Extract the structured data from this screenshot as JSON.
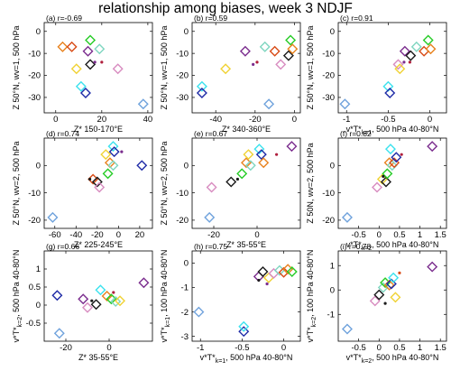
{
  "title": "relationship among biases, week 3 NDJF",
  "chart_data": [
    {
      "type": "scatter",
      "panel": "(a)",
      "r_label": "r=-0.69",
      "xlabel": "Z* 150-170°E",
      "ylabel": "Z 50°N, wv=1, 500 hPa",
      "xlim": [
        -5,
        42
      ],
      "ylim": [
        -37,
        4
      ],
      "xticks": [
        0,
        20,
        40
      ],
      "yticks": [
        0,
        -10,
        -20,
        -30
      ],
      "points": [
        {
          "x": 3,
          "y": -7,
          "color": "#e8821e",
          "marker": "diamond"
        },
        {
          "x": 7,
          "y": -7,
          "color": "#d84b16",
          "marker": "diamond"
        },
        {
          "x": 9,
          "y": -17,
          "color": "#f0d234",
          "marker": "diamond"
        },
        {
          "x": 11,
          "y": -25,
          "color": "#3ce2ee",
          "marker": "diamond"
        },
        {
          "x": 13,
          "y": -28,
          "color": "#1e2aa6",
          "marker": "diamond"
        },
        {
          "x": 15,
          "y": -4,
          "color": "#26cc26",
          "marker": "diamond"
        },
        {
          "x": 14,
          "y": -9,
          "color": "#7b2d8e",
          "marker": "diamond"
        },
        {
          "x": 15,
          "y": -15,
          "color": "#1a1a1a",
          "marker": "diamond"
        },
        {
          "x": 19,
          "y": -8,
          "color": "#7fd6c0",
          "marker": "diamond"
        },
        {
          "x": 27,
          "y": -17,
          "color": "#d88cc0",
          "marker": "diamond"
        },
        {
          "x": 38,
          "y": -33,
          "color": "#6fa2dc",
          "marker": "diamond"
        },
        {
          "x": 17,
          "y": -14,
          "color": "#7b2d8e",
          "marker": "dot"
        },
        {
          "x": 20,
          "y": -14,
          "color": "#b0203e",
          "marker": "dot"
        }
      ]
    },
    {
      "type": "scatter",
      "panel": "(b)",
      "r_label": "r=0.59",
      "xlabel": "Z* 340-360°E",
      "ylabel": "Z 50°N, wv=1, 500 hPa",
      "xlim": [
        -52,
        3
      ],
      "ylim": [
        -37,
        4
      ],
      "xticks": [
        -40,
        -20,
        0
      ],
      "yticks": [
        0,
        -10,
        -20,
        -30
      ],
      "points": [
        {
          "x": -47,
          "y": -25,
          "color": "#3ce2ee",
          "marker": "diamond"
        },
        {
          "x": -47,
          "y": -28,
          "color": "#1e2aa6",
          "marker": "diamond"
        },
        {
          "x": -35,
          "y": -17,
          "color": "#f0d234",
          "marker": "diamond"
        },
        {
          "x": -25,
          "y": -9,
          "color": "#7b2d8e",
          "marker": "diamond"
        },
        {
          "x": -15,
          "y": -7,
          "color": "#7fd6c0",
          "marker": "diamond"
        },
        {
          "x": -13,
          "y": -33,
          "color": "#6fa2dc",
          "marker": "diamond"
        },
        {
          "x": -10,
          "y": -9,
          "color": "#d84b16",
          "marker": "diamond"
        },
        {
          "x": -7,
          "y": -15,
          "color": "#d88cc0",
          "marker": "diamond"
        },
        {
          "x": -3,
          "y": -11,
          "color": "#1a1a1a",
          "marker": "diamond"
        },
        {
          "x": -2,
          "y": -4,
          "color": "#26cc26",
          "marker": "diamond"
        },
        {
          "x": -1,
          "y": -8,
          "color": "#e8821e",
          "marker": "diamond"
        },
        {
          "x": -21,
          "y": -15,
          "color": "#7b2d8e",
          "marker": "dot"
        },
        {
          "x": -19,
          "y": -14,
          "color": "#b0203e",
          "marker": "dot"
        }
      ]
    },
    {
      "type": "scatter",
      "panel": "(c)",
      "r_label": "r=0.91",
      "xlabel": "v*T*k=1, 500 hPa 40-80°N",
      "ylabel": "Z 50°N, wv=1, 500 hPa",
      "xlim": [
        -1.1,
        0.2
      ],
      "ylim": [
        -37,
        4
      ],
      "xticks": [
        -1,
        -0.5,
        0
      ],
      "yticks": [
        0,
        -10,
        -20,
        -30
      ],
      "points": [
        {
          "x": -1.02,
          "y": -33,
          "color": "#6fa2dc",
          "marker": "diamond"
        },
        {
          "x": -0.5,
          "y": -25,
          "color": "#3ce2ee",
          "marker": "diamond"
        },
        {
          "x": -0.48,
          "y": -28,
          "color": "#1e2aa6",
          "marker": "diamond"
        },
        {
          "x": -0.38,
          "y": -15,
          "color": "#d88cc0",
          "marker": "diamond"
        },
        {
          "x": -0.36,
          "y": -17,
          "color": "#f0d234",
          "marker": "diamond"
        },
        {
          "x": -0.3,
          "y": -9,
          "color": "#7b2d8e",
          "marker": "diamond"
        },
        {
          "x": -0.23,
          "y": -11,
          "color": "#1a1a1a",
          "marker": "diamond"
        },
        {
          "x": -0.16,
          "y": -7,
          "color": "#7fd6c0",
          "marker": "diamond"
        },
        {
          "x": -0.07,
          "y": -9,
          "color": "#d84b16",
          "marker": "diamond"
        },
        {
          "x": -0.02,
          "y": -4,
          "color": "#26cc26",
          "marker": "diamond"
        },
        {
          "x": 0.01,
          "y": -8,
          "color": "#e8821e",
          "marker": "diamond"
        },
        {
          "x": -0.31,
          "y": -14,
          "color": "#7b2d8e",
          "marker": "dot"
        },
        {
          "x": -0.24,
          "y": -14,
          "color": "#b0203e",
          "marker": "dot"
        }
      ]
    },
    {
      "type": "scatter",
      "panel": "(d)",
      "r_label": "r=0.74",
      "xlabel": "Z* 225-245°E",
      "ylabel": "Z 50°N, wv=2, 500 hPa",
      "xlim": [
        -70,
        32
      ],
      "ylim": [
        -23,
        10
      ],
      "xticks": [
        -60,
        -40,
        -20,
        0,
        20
      ],
      "yticks": [
        0,
        -10,
        -20
      ],
      "points": [
        {
          "x": -62,
          "y": -19,
          "color": "#6fa2dc",
          "marker": "diamond"
        },
        {
          "x": -24,
          "y": -5,
          "color": "#d84b16",
          "marker": "diamond"
        },
        {
          "x": -20,
          "y": -6,
          "color": "#1a1a1a",
          "marker": "diamond"
        },
        {
          "x": -18,
          "y": -8,
          "color": "#d88cc0",
          "marker": "diamond"
        },
        {
          "x": -12,
          "y": 4,
          "color": "#f0d234",
          "marker": "diamond"
        },
        {
          "x": -10,
          "y": -3,
          "color": "#26cc26",
          "marker": "diamond"
        },
        {
          "x": -8,
          "y": 1,
          "color": "#e8821e",
          "marker": "diamond"
        },
        {
          "x": -5,
          "y": 7,
          "color": "#3ce2ee",
          "marker": "diamond"
        },
        {
          "x": -4,
          "y": 5,
          "color": "#1e2aa6",
          "marker": "diamond"
        },
        {
          "x": -5,
          "y": 0,
          "color": "#7fd6c0",
          "marker": "diamond"
        },
        {
          "x": 22,
          "y": 0,
          "color": "#1e2aa6",
          "marker": "diamond"
        },
        {
          "x": 3,
          "y": 5,
          "color": "#7b2d8e",
          "marker": "dot"
        },
        {
          "x": -27,
          "y": -5,
          "color": "#1a1a1a",
          "marker": "dot"
        }
      ]
    },
    {
      "type": "scatter",
      "panel": "(e)",
      "r_label": "r=0.67",
      "xlabel": "Z* 35-55°E",
      "ylabel": "Z 50°N, wv=2, 500 hPa",
      "xlim": [
        -30,
        20
      ],
      "ylim": [
        -23,
        10
      ],
      "xticks": [
        -20,
        0
      ],
      "yticks": [
        0,
        -10,
        -20
      ],
      "points": [
        {
          "x": -22,
          "y": -19,
          "color": "#6fa2dc",
          "marker": "diamond"
        },
        {
          "x": -21,
          "y": -8,
          "color": "#d88cc0",
          "marker": "diamond"
        },
        {
          "x": -12,
          "y": -6,
          "color": "#1a1a1a",
          "marker": "diamond"
        },
        {
          "x": -7,
          "y": -3,
          "color": "#26cc26",
          "marker": "diamond"
        },
        {
          "x": -5,
          "y": 1,
          "color": "#e8821e",
          "marker": "diamond"
        },
        {
          "x": -4,
          "y": 4,
          "color": "#f0d234",
          "marker": "diamond"
        },
        {
          "x": -3,
          "y": 0,
          "color": "#7fd6c0",
          "marker": "diamond"
        },
        {
          "x": 1,
          "y": 6,
          "color": "#3ce2ee",
          "marker": "diamond"
        },
        {
          "x": 2,
          "y": 4,
          "color": "#1e2aa6",
          "marker": "diamond"
        },
        {
          "x": 3,
          "y": 1,
          "color": "#e8821e",
          "marker": "diamond"
        },
        {
          "x": 16,
          "y": 7,
          "color": "#7b2d8e",
          "marker": "diamond"
        },
        {
          "x": 9,
          "y": 4,
          "color": "#b0203e",
          "marker": "dot"
        },
        {
          "x": -9,
          "y": -5,
          "color": "#1a1a1a",
          "marker": "dot"
        }
      ]
    },
    {
      "type": "scatter",
      "panel": "(f)",
      "r_label": "r=0.82",
      "xlabel": "v*T*k=2, 500 hPa 40-80°N",
      "ylabel": "Z 50N, wv=2, 500 hPa",
      "xlim": [
        -1.0,
        1.65
      ],
      "ylim": [
        -23,
        10
      ],
      "xticks": [
        -0.5,
        0,
        0.5,
        1,
        1.5
      ],
      "yticks": [
        0,
        -10,
        -20
      ],
      "points": [
        {
          "x": -0.78,
          "y": -19,
          "color": "#6fa2dc",
          "marker": "diamond"
        },
        {
          "x": -0.05,
          "y": -8,
          "color": "#d88cc0",
          "marker": "diamond"
        },
        {
          "x": 0.08,
          "y": -5,
          "color": "#f0d234",
          "marker": "diamond"
        },
        {
          "x": 0.17,
          "y": -6,
          "color": "#1a1a1a",
          "marker": "diamond"
        },
        {
          "x": 0.2,
          "y": -3,
          "color": "#26cc26",
          "marker": "diamond"
        },
        {
          "x": 0.25,
          "y": 1,
          "color": "#e8821e",
          "marker": "diamond"
        },
        {
          "x": 0.32,
          "y": 0,
          "color": "#7fd6c0",
          "marker": "diamond"
        },
        {
          "x": 0.37,
          "y": 1,
          "color": "#d84b16",
          "marker": "diamond"
        },
        {
          "x": 0.42,
          "y": 3,
          "color": "#1e2aa6",
          "marker": "diamond"
        },
        {
          "x": 0.28,
          "y": 6,
          "color": "#3ce2ee",
          "marker": "diamond"
        },
        {
          "x": 1.3,
          "y": 7,
          "color": "#7b2d8e",
          "marker": "diamond"
        },
        {
          "x": 0.1,
          "y": -4,
          "color": "#1a1a1a",
          "marker": "dot"
        },
        {
          "x": 0.55,
          "y": 4,
          "color": "#b0203e",
          "marker": "dot"
        }
      ]
    },
    {
      "type": "scatter",
      "panel": "(g)",
      "r_label": "r=0.66",
      "xlabel": "Z* 35-55°E",
      "ylabel": "v*T*k=2, 500 hPa 40-80°N",
      "xlim": [
        -30,
        20
      ],
      "ylim": [
        -1.0,
        1.5
      ],
      "xticks": [
        -20,
        0
      ],
      "yticks": [
        1,
        0.5,
        0,
        -0.5
      ],
      "points": [
        {
          "x": -23,
          "y": -0.78,
          "color": "#6fa2dc",
          "marker": "diamond"
        },
        {
          "x": -24,
          "y": 0.27,
          "color": "#1e2aa6",
          "marker": "diamond"
        },
        {
          "x": -12,
          "y": 0.17,
          "color": "#7b2d8e",
          "marker": "diamond"
        },
        {
          "x": -10,
          "y": -0.07,
          "color": "#d88cc0",
          "marker": "diamond"
        },
        {
          "x": -6,
          "y": 0.02,
          "color": "#1a1a1a",
          "marker": "diamond"
        },
        {
          "x": -4,
          "y": 0.42,
          "color": "#3ce2ee",
          "marker": "diamond"
        },
        {
          "x": -1,
          "y": 0.25,
          "color": "#e8821e",
          "marker": "diamond"
        },
        {
          "x": 1,
          "y": 0.17,
          "color": "#26cc26",
          "marker": "diamond"
        },
        {
          "x": 3,
          "y": 0.1,
          "color": "#7fd6c0",
          "marker": "diamond"
        },
        {
          "x": 5,
          "y": 0.12,
          "color": "#f0d234",
          "marker": "diamond"
        },
        {
          "x": 16,
          "y": 0.62,
          "color": "#7b2d8e",
          "marker": "diamond"
        },
        {
          "x": 2,
          "y": 0.35,
          "color": "#b0203e",
          "marker": "dot"
        },
        {
          "x": -8,
          "y": 0.12,
          "color": "#1a1a1a",
          "marker": "dot"
        }
      ]
    },
    {
      "type": "scatter",
      "panel": "(h)",
      "r_label": "r=0.75",
      "xlabel": "v*T*k=1, 500 hPa 40-80°N",
      "ylabel": "v*T*k=1, 100 hPa 40-80°N",
      "xlim": [
        -1.1,
        0.2
      ],
      "ylim": [
        -3.2,
        0.5
      ],
      "xticks": [
        -1,
        -0.5,
        0
      ],
      "yticks": [
        0,
        -1,
        -2,
        -3
      ],
      "points": [
        {
          "x": -1.02,
          "y": -2.0,
          "color": "#6fa2dc",
          "marker": "diamond"
        },
        {
          "x": -0.48,
          "y": -2.8,
          "color": "#1e2aa6",
          "marker": "diamond"
        },
        {
          "x": -0.48,
          "y": -2.6,
          "color": "#3ce2ee",
          "marker": "diamond"
        },
        {
          "x": -0.3,
          "y": -0.55,
          "color": "#7b2d8e",
          "marker": "diamond"
        },
        {
          "x": -0.25,
          "y": -0.35,
          "color": "#1a1a1a",
          "marker": "diamond"
        },
        {
          "x": -0.18,
          "y": -0.6,
          "color": "#f0d234",
          "marker": "diamond"
        },
        {
          "x": -0.12,
          "y": -0.42,
          "color": "#d88cc0",
          "marker": "diamond"
        },
        {
          "x": -0.05,
          "y": -0.3,
          "color": "#7fd6c0",
          "marker": "diamond"
        },
        {
          "x": 0.0,
          "y": -0.38,
          "color": "#d84b16",
          "marker": "diamond"
        },
        {
          "x": 0.05,
          "y": -0.25,
          "color": "#e8821e",
          "marker": "diamond"
        },
        {
          "x": 0.1,
          "y": -0.35,
          "color": "#26cc26",
          "marker": "diamond"
        },
        {
          "x": -0.2,
          "y": -0.85,
          "color": "#7b2d8e",
          "marker": "dot"
        },
        {
          "x": -0.3,
          "y": -0.7,
          "color": "#1a1a1a",
          "marker": "dot"
        }
      ]
    },
    {
      "type": "scatter",
      "panel": "(i)",
      "r_label": "r=0.78",
      "xlabel": "v*T*k=2, 500 hPa 40-80°N",
      "ylabel": "v*T*k=2, 100 hPa 40-80°N",
      "xlim": [
        -1.0,
        1.65
      ],
      "ylim": [
        -2.1,
        1.6
      ],
      "xticks": [
        -0.5,
        0,
        0.5,
        1,
        1.5
      ],
      "yticks": [
        1,
        0,
        -1
      ],
      "points": [
        {
          "x": -0.78,
          "y": -1.6,
          "color": "#6fa2dc",
          "marker": "diamond"
        },
        {
          "x": -0.1,
          "y": -0.45,
          "color": "#d88cc0",
          "marker": "diamond"
        },
        {
          "x": 0.0,
          "y": -0.2,
          "color": "#1a1a1a",
          "marker": "diamond"
        },
        {
          "x": 0.1,
          "y": 0.1,
          "color": "#7fd6c0",
          "marker": "diamond"
        },
        {
          "x": 0.15,
          "y": 0.3,
          "color": "#26cc26",
          "marker": "diamond"
        },
        {
          "x": 0.25,
          "y": 0.2,
          "color": "#e8821e",
          "marker": "diamond"
        },
        {
          "x": 0.3,
          "y": 0.25,
          "color": "#1e2aa6",
          "marker": "diamond"
        },
        {
          "x": 0.35,
          "y": 0.5,
          "color": "#3ce2ee",
          "marker": "diamond"
        },
        {
          "x": 0.4,
          "y": -0.3,
          "color": "#f0d234",
          "marker": "diamond"
        },
        {
          "x": 1.3,
          "y": 0.95,
          "color": "#7b2d8e",
          "marker": "diamond"
        },
        {
          "x": 0.5,
          "y": 0.7,
          "color": "#d84b16",
          "marker": "dot"
        },
        {
          "x": 0.15,
          "y": -0.55,
          "color": "#1a1a1a",
          "marker": "dot"
        }
      ]
    }
  ]
}
